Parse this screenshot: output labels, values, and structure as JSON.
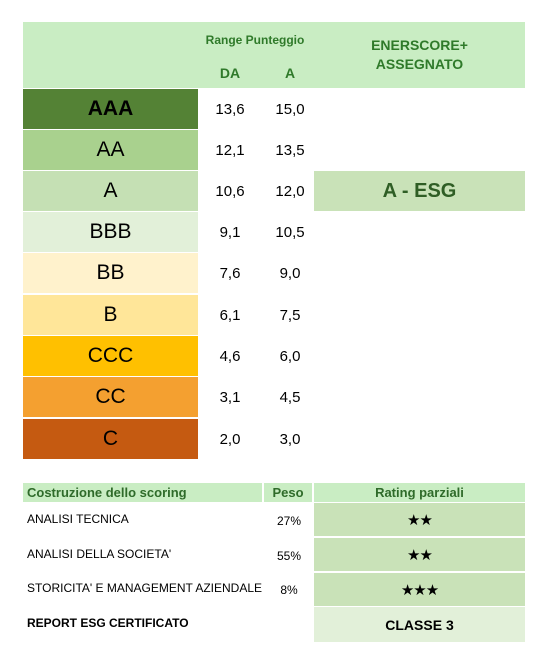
{
  "header": {
    "range_label": "Range Punteggio",
    "col_da": "DA",
    "col_a": "A",
    "enerscore_line1": "ENERSCORE+",
    "enerscore_line2": "ASSEGNATO"
  },
  "ratings": [
    {
      "label": "AAA",
      "da": "13,6",
      "a": "15,0",
      "color": "#548235"
    },
    {
      "label": "AA",
      "da": "12,1",
      "a": "13,5",
      "color": "#a9d18e"
    },
    {
      "label": "A",
      "da": "10,6",
      "a": "12,0",
      "color": "#c5e0b4"
    },
    {
      "label": "BBB",
      "da": "9,1",
      "a": "10,5",
      "color": "#e2f0d9"
    },
    {
      "label": "BB",
      "da": "7,6",
      "a": "9,0",
      "color": "#fff2cc"
    },
    {
      "label": "B",
      "da": "6,1",
      "a": "7,5",
      "color": "#ffe699"
    },
    {
      "label": "CCC",
      "da": "4,6",
      "a": "6,0",
      "color": "#ffc000"
    },
    {
      "label": "CC",
      "da": "3,1",
      "a": "4,5",
      "color": "#f4a030"
    },
    {
      "label": "C",
      "da": "2,0",
      "a": "3,0",
      "color": "#c55a11"
    }
  ],
  "assigned": "A - ESG",
  "scoring": {
    "col_label": "Costruzione dello scoring",
    "col_peso": "Peso",
    "col_rating": "Rating parziali",
    "rows": [
      {
        "label": "ANALISI TECNICA",
        "peso": "27%",
        "stars": "★★"
      },
      {
        "label": "ANALISI DELLA SOCIETA'",
        "peso": "55%",
        "stars": "★★"
      },
      {
        "label": "STORICITA' E MANAGEMENT AZIENDALE",
        "peso": "8%",
        "stars": "★★★"
      }
    ],
    "report_label": "REPORT ESG CERTIFICATO",
    "classe": "CLASSE 3"
  }
}
